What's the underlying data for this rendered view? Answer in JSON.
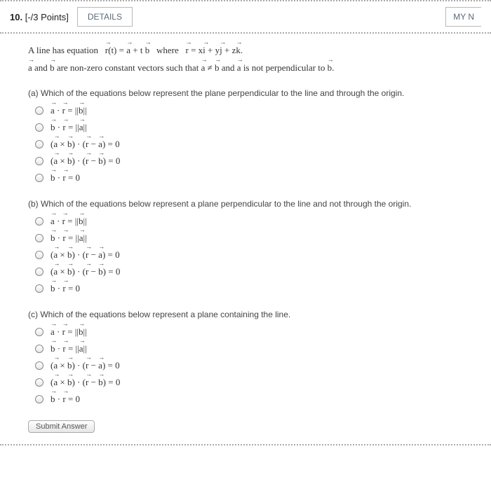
{
  "header": {
    "qnum_prefix": "10.",
    "points": "[-/3 Points]",
    "details": "DETAILS",
    "myn": "MY N"
  },
  "intro": {
    "line1_pre": "A line has equation   ",
    "line1_eq": "r(t) = a + t b",
    "line1_where": "   where   ",
    "line1_r": "r = xi + yj + zk.",
    "line2": "a and b are non-zero constant vectors such that a ≠ b and a is not perpendicular to b."
  },
  "parts": {
    "a": {
      "q": "(a) Which of the equations below represent the plane perpendicular to the line and through the origin.",
      "opts": [
        "a · r = ||b||",
        "b · r = ||a||",
        "(a × b) · (r − a) = 0",
        "(a × b) · (r − b) = 0",
        "b · r = 0"
      ]
    },
    "b": {
      "q": "(b) Which of the equations below represent a plane perpendicular to the line and not through the origin.",
      "opts": [
        "a · r = ||b||",
        "b · r = ||a||",
        "(a × b) · (r − a) = 0",
        "(a × b) · (r − b) = 0",
        "b · r = 0"
      ]
    },
    "c": {
      "q": "(c) Which of the equations below represent a plane containing the line.",
      "opts": [
        "a · r = ||b||",
        "b · r = ||a||",
        "(a × b) · (r − a) = 0",
        "(a × b) · (r − b) = 0",
        "b · r = 0"
      ]
    }
  },
  "submit": "Submit Answer"
}
